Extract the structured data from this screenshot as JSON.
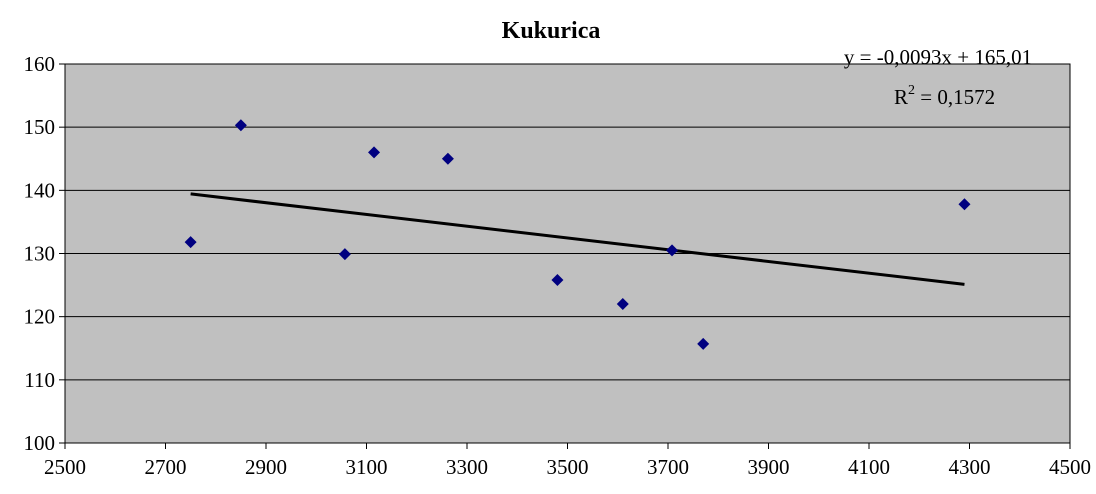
{
  "chart_data": {
    "type": "scatter",
    "title": "Kukurica",
    "xlabel": "",
    "ylabel": "",
    "xlim": [
      2500,
      4500
    ],
    "ylim": [
      100,
      160
    ],
    "x_ticks": [
      2500,
      2700,
      2900,
      3100,
      3300,
      3500,
      3700,
      3900,
      4100,
      4300,
      4500
    ],
    "y_ticks": [
      100,
      110,
      120,
      130,
      140,
      150,
      160
    ],
    "grid": "horizontal",
    "plot_background": "#c0c0c0",
    "marker_color": "#000080",
    "marker": "diamond",
    "series": [
      {
        "points": [
          {
            "x": 2750,
            "y": 131.8
          },
          {
            "x": 2850,
            "y": 150.3
          },
          {
            "x": 3057,
            "y": 129.9
          },
          {
            "x": 3115,
            "y": 146.0
          },
          {
            "x": 3262,
            "y": 145.0
          },
          {
            "x": 3480,
            "y": 125.8
          },
          {
            "x": 3610,
            "y": 122.0
          },
          {
            "x": 3708,
            "y": 130.5
          },
          {
            "x": 3770,
            "y": 115.7
          },
          {
            "x": 4290,
            "y": 137.8
          }
        ]
      }
    ],
    "trendline": {
      "type": "linear",
      "slope": -0.0093,
      "intercept": 165.01,
      "x_range": [
        2750,
        4290
      ],
      "equation_label": "y = -0,0093x + 165,01",
      "r2_label": "R",
      "r2_superscript": "2",
      "r2_value_label": " = 0,1572",
      "color": "#000000"
    }
  }
}
